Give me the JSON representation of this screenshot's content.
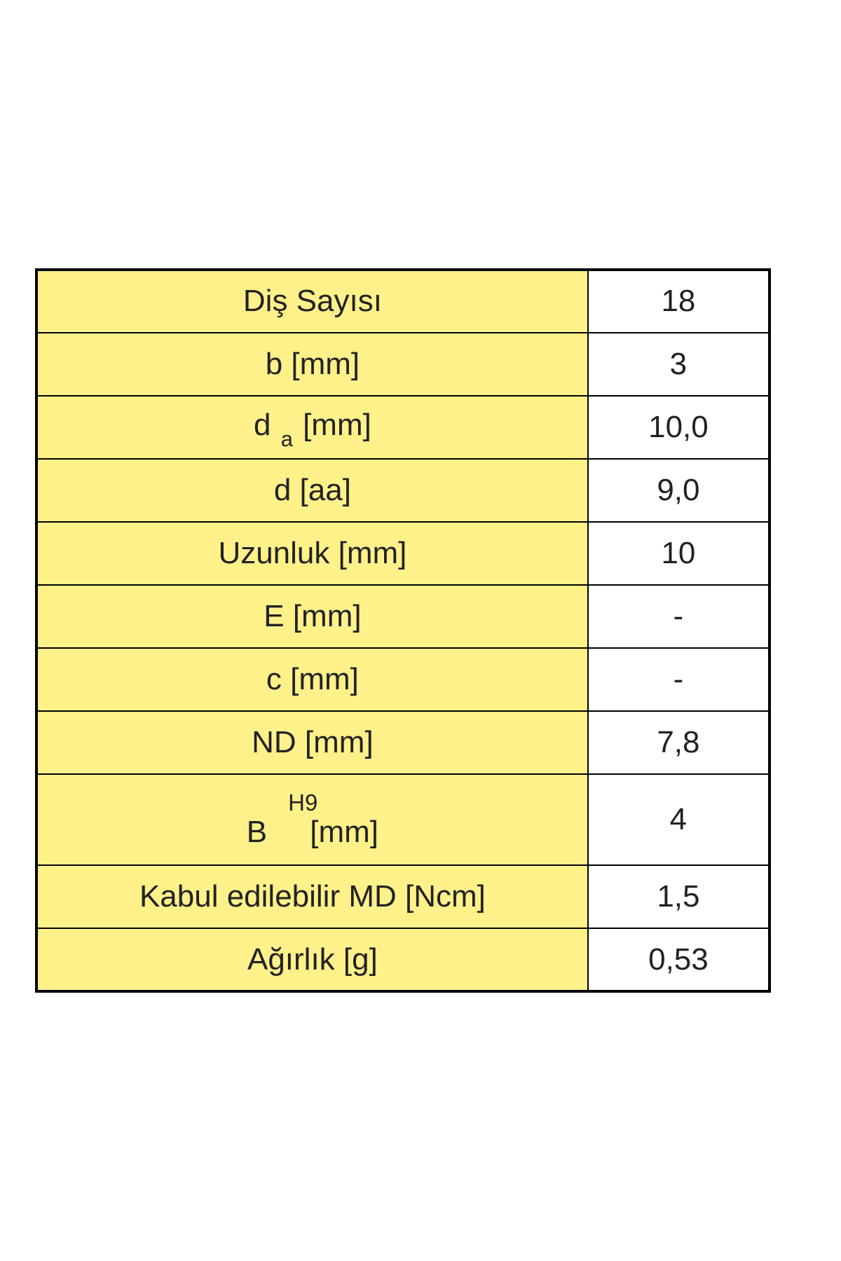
{
  "table": {
    "background_color": "#ffffff",
    "label_bg_color": "#fff18a",
    "value_bg_color": "#ffffff",
    "border_color": "#000000",
    "outer_border_width": 4,
    "inner_border_width": 2,
    "font_family": "Verdana, sans-serif",
    "font_size": 44,
    "text_color": "#222222",
    "label_column_width": 790,
    "value_column_width": 260,
    "rows": [
      {
        "label_plain": "Diş Sayısı",
        "value": "18",
        "label_type": "plain"
      },
      {
        "label_plain": "b [mm]",
        "value": "3",
        "label_type": "plain"
      },
      {
        "label_base": "d ",
        "label_sub": "a",
        "label_rest": " [mm]",
        "value": "10,0",
        "label_type": "subscript"
      },
      {
        "label_plain": "d [aa]",
        "value": "9,0",
        "label_type": "plain"
      },
      {
        "label_plain": "Uzunluk [mm]",
        "value": "10",
        "label_type": "plain"
      },
      {
        "label_plain": "E [mm]",
        "value": "-",
        "label_type": "plain"
      },
      {
        "label_plain": "c [mm]",
        "value": "-",
        "label_type": "plain"
      },
      {
        "label_plain": "ND [mm]",
        "value": "7,8",
        "label_type": "plain"
      },
      {
        "label_top": "H9",
        "label_bottom_left": "B",
        "label_bottom_right": "[mm]",
        "value": "4",
        "label_type": "stacked"
      },
      {
        "label_plain": "Kabul edilebilir MD [Ncm]",
        "value": "1,5",
        "label_type": "plain"
      },
      {
        "label_plain": "Ağırlık [g]",
        "value": "0,53",
        "label_type": "plain"
      }
    ]
  }
}
